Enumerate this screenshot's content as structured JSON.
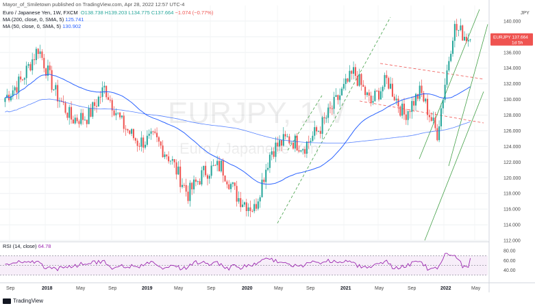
{
  "header": {
    "publisher": "Mayor_of_Smiletown published on TradingView.com, Apr 28, 2022 12:57 UTC-4",
    "symbol_line": "Euro / Japanese Yen, 1W, FXCM",
    "ohlc": "O138.738 H139.203 L134.775 C137.664",
    "change": "−1.074 (−0.77%)",
    "ma200_label": "MA (200, close, 0, SMA, 5)",
    "ma200_value": "125.741",
    "ma50_label": "MA (50, close, 0, SMA, 5)",
    "ma50_value": "130.902",
    "rsi_label": "RSI (14, close)",
    "rsi_value": "64.78"
  },
  "watermark": {
    "symbol": "EURJPY, 1W",
    "name": "Euro / Japanese Yen"
  },
  "price_axis": {
    "currency": "JPY",
    "ticks": [
      "140.000",
      "138.000",
      "136.000",
      "134.000",
      "132.000",
      "130.000",
      "128.000",
      "126.000",
      "124.000",
      "122.000",
      "120.000",
      "118.000",
      "116.000",
      "114.000",
      "112.000"
    ],
    "last_price_symbol": "EURJPY",
    "last_price": "137.664",
    "countdown": "1d 5h"
  },
  "rsi_axis": {
    "ticks": [
      "80.00",
      "60.00",
      "40.00"
    ]
  },
  "time_axis": {
    "labels": [
      "Sep",
      "2018",
      "May",
      "Sep",
      "2019",
      "May",
      "Sep",
      "2020",
      "May",
      "Sep",
      "2021",
      "May",
      "Sep",
      "2022",
      "May"
    ],
    "bold": [
      "2018",
      "2019",
      "2020",
      "2021",
      "2022"
    ]
  },
  "footer": {
    "brand": "TradingView"
  },
  "colors": {
    "up": "#26a69a",
    "down": "#ef5350",
    "ma50": "#2962ff",
    "ma200": "#2962ff",
    "rsi": "#9c27b0",
    "channel": "#43a047",
    "dashed_red": "#ef5350"
  },
  "chart_data": {
    "type": "candlestick",
    "title": "EURJPY, 1W",
    "ylim": [
      112,
      142
    ],
    "approx_close_path": [
      [
        "2017-08",
        130.2
      ],
      [
        "2017-11",
        132.5
      ],
      [
        "2018-01",
        136.6
      ],
      [
        "2018-03",
        131.0
      ],
      [
        "2018-05",
        127.5
      ],
      [
        "2018-08",
        127.8
      ],
      [
        "2018-10",
        131.5
      ],
      [
        "2018-12",
        127.0
      ],
      [
        "2019-01",
        124.5
      ],
      [
        "2019-03",
        125.0
      ],
      [
        "2019-05",
        122.3
      ],
      [
        "2019-08",
        117.9
      ],
      [
        "2019-10",
        120.8
      ],
      [
        "2020-01",
        121.5
      ],
      [
        "2020-03",
        117.5
      ],
      [
        "2020-05",
        116.0
      ],
      [
        "2020-07",
        123.5
      ],
      [
        "2020-09",
        125.0
      ],
      [
        "2020-11",
        124.0
      ],
      [
        "2021-01",
        126.5
      ],
      [
        "2021-03",
        130.0
      ],
      [
        "2021-06",
        133.5
      ],
      [
        "2021-08",
        129.5
      ],
      [
        "2021-10",
        132.5
      ],
      [
        "2021-12",
        128.0
      ],
      [
        "2022-02",
        131.0
      ],
      [
        "2022-03",
        125.6
      ],
      [
        "2022-04",
        139.2
      ],
      [
        "2022-04b",
        137.664
      ]
    ],
    "ma200_end": 125.741,
    "ma50_end": 130.902,
    "rsi_last": 64.78
  }
}
